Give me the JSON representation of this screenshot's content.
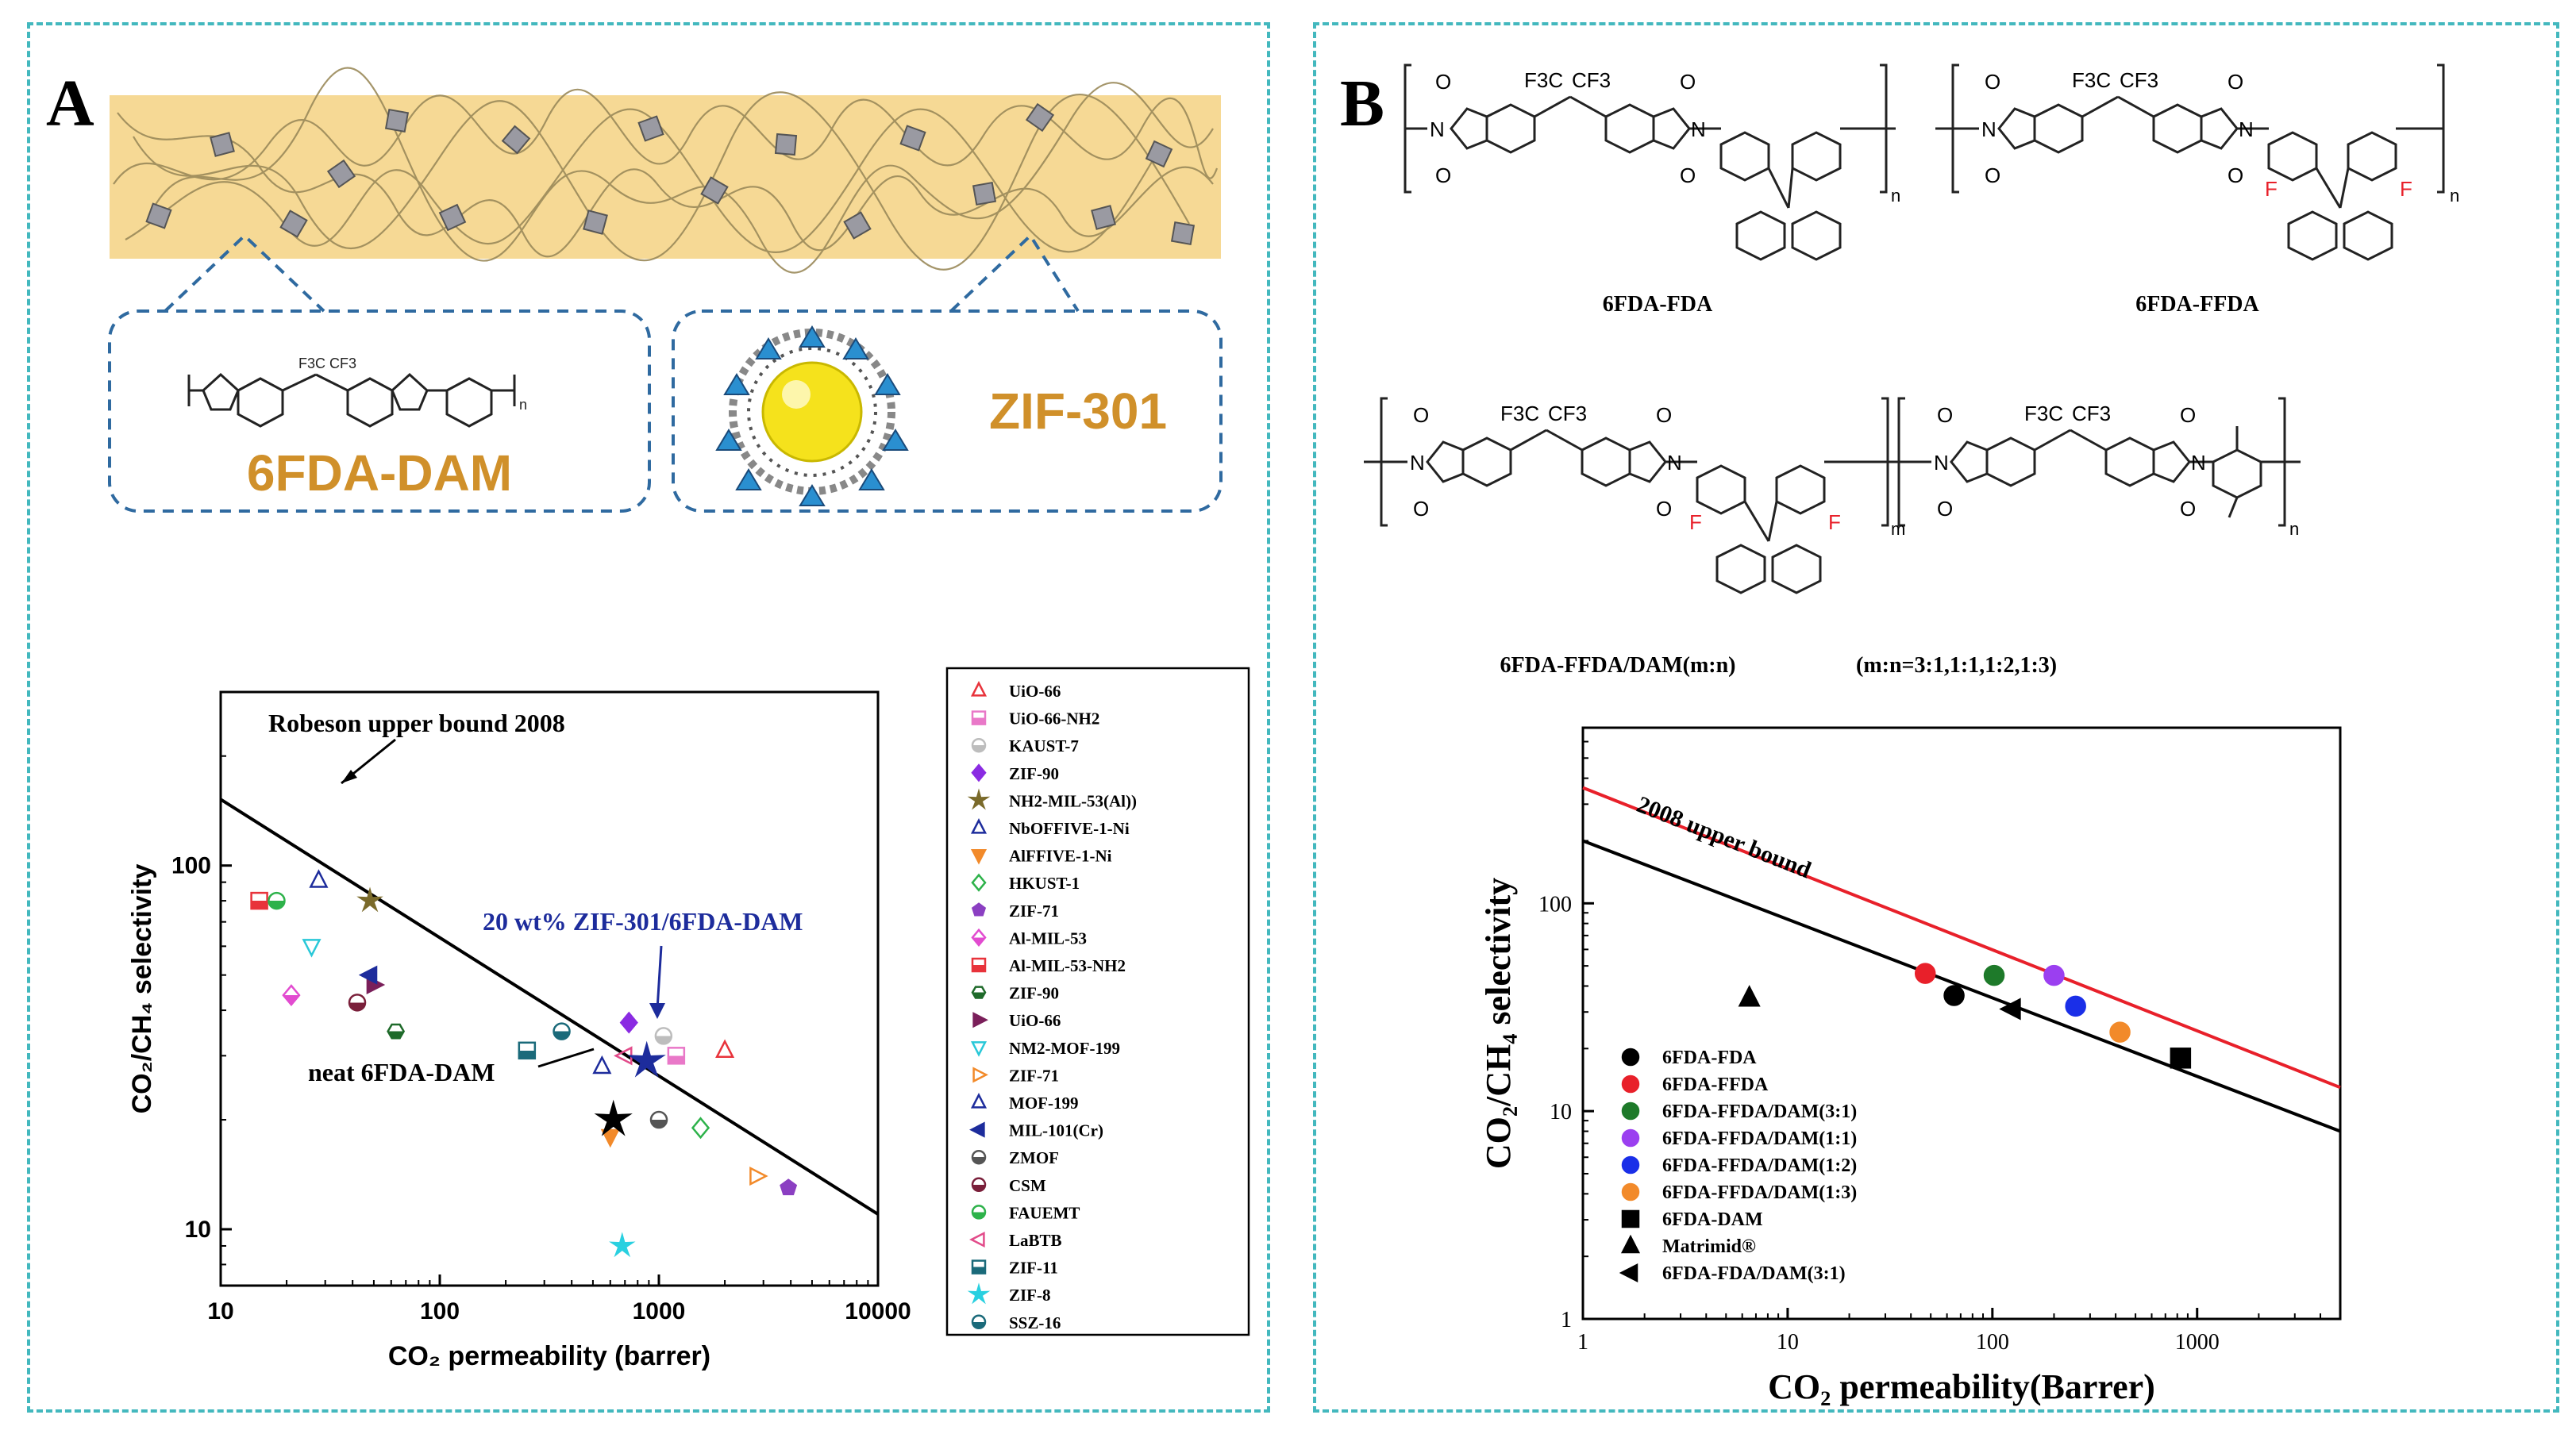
{
  "panelA": {
    "label": "A",
    "composite": {
      "polymer_name": "6FDA-DAM",
      "filler_name": "ZIF-301",
      "cf3_label": "F3C CF3",
      "repeat_n": "n"
    },
    "chart_data": {
      "type": "scatter",
      "xscale": "log",
      "yscale": "log",
      "xlim": [
        10,
        10000
      ],
      "ylim": [
        7,
        300
      ],
      "xticks": [
        "10",
        "100",
        "1000",
        "10000"
      ],
      "yticks": [
        "10",
        "100"
      ],
      "xlabel": "CO₂ permeability (barrer)",
      "ylabel": "CO₂/CH₄ selectivity",
      "upper_bound": {
        "name": "Robeson upper bound 2008",
        "points": [
          [
            10,
            152
          ],
          [
            10000,
            11
          ]
        ],
        "color": "#000000"
      },
      "annotations": {
        "highlight": "20 wt% ZIF-301/6FDA-DAM",
        "neat": "neat 6FDA-DAM"
      },
      "series": [
        {
          "name": "UiO-66",
          "marker": "tri-up-open",
          "color": "#e8333b",
          "points": [
            [
              2000,
              31
            ]
          ]
        },
        {
          "name": "UiO-66-NH2",
          "marker": "square-half",
          "color": "#e978c8",
          "points": [
            [
              1200,
              30
            ]
          ]
        },
        {
          "name": "KAUST-7",
          "marker": "circle-half",
          "color": "#bdbdbd",
          "points": [
            [
              1050,
              34
            ]
          ]
        },
        {
          "name": "ZIF-90",
          "marker": "diamond",
          "color": "#8a2be2",
          "points": [
            [
              730,
              37
            ]
          ]
        },
        {
          "name": "NH2-MIL-53(Al))",
          "marker": "star",
          "color": "#7a6a2a",
          "points": [
            [
              48,
              80
            ]
          ]
        },
        {
          "name": "NbOFFIVE-1-Ni",
          "marker": "tri-up-open",
          "color": "#1d2c9c",
          "points": [
            [
              28,
              91
            ]
          ]
        },
        {
          "name": "AlFFIVE-1-Ni",
          "marker": "tri-down",
          "color": "#f28a2a",
          "points": [
            [
              600,
              18
            ]
          ]
        },
        {
          "name": "HKUST-1",
          "marker": "diamond-open",
          "color": "#2db24a",
          "points": [
            [
              1550,
              19
            ]
          ]
        },
        {
          "name": "ZIF-71",
          "marker": "pentagon",
          "color": "#8b3fc2",
          "points": [
            [
              3900,
              13
            ]
          ]
        },
        {
          "name": "Al-MIL-53",
          "marker": "diamond-half",
          "color": "#e24bd0",
          "points": [
            [
              21,
              44
            ]
          ]
        },
        {
          "name": "Al-MIL-53-NH2",
          "marker": "square-half",
          "color": "#e8333b",
          "points": [
            [
              15,
              80
            ]
          ]
        },
        {
          "name": "ZIF-90",
          "marker": "hexagon-half",
          "color": "#1e6a2a",
          "points": [
            [
              63,
              35
            ]
          ]
        },
        {
          "name": "UiO-66",
          "marker": "tri-right",
          "color": "#7a1f5a",
          "points": [
            [
              50,
              47
            ]
          ]
        },
        {
          "name": "NM2-MOF-199",
          "marker": "tri-down-open",
          "color": "#29c8d8",
          "points": [
            [
              26,
              60
            ]
          ]
        },
        {
          "name": "ZIF-71",
          "marker": "tri-right-open",
          "color": "#f28a2a",
          "points": [
            [
              2800,
              14
            ]
          ]
        },
        {
          "name": "MOF-199",
          "marker": "tri-up-open",
          "color": "#1d2c9c",
          "points": [
            [
              550,
              28
            ]
          ]
        },
        {
          "name": "MIL-101(Cr)",
          "marker": "tri-left",
          "color": "#1d2c9c",
          "points": [
            [
              48,
              50
            ]
          ]
        },
        {
          "name": "ZMOF",
          "marker": "circle-half",
          "color": "#555555",
          "points": [
            [
              1000,
              20
            ]
          ]
        },
        {
          "name": "CSM",
          "marker": "circle-half",
          "color": "#7a1f3a",
          "points": [
            [
              42,
              42
            ]
          ]
        },
        {
          "name": "FAUEMT",
          "marker": "circle-half",
          "color": "#2db24a",
          "points": [
            [
              18,
              80
            ]
          ]
        },
        {
          "name": "LaBTB",
          "marker": "tri-left-open",
          "color": "#e24b8a",
          "points": [
            [
              700,
              30
            ]
          ]
        },
        {
          "name": "ZIF-11",
          "marker": "square-half",
          "color": "#1a6a7a",
          "points": [
            [
              250,
              31
            ]
          ]
        },
        {
          "name": "ZIF-8",
          "marker": "star",
          "color": "#29d0e0",
          "points": [
            [
              680,
              9
            ]
          ]
        },
        {
          "name": "SSZ-16",
          "marker": "circle-half",
          "color": "#1a6a7a",
          "points": [
            [
              360,
              35
            ]
          ]
        }
      ],
      "special_points": [
        {
          "name": "20 wt% ZIF-301/6FDA-DAM",
          "marker": "star",
          "color": "#1d2c9c",
          "points": [
            [
              880,
              29
            ]
          ]
        },
        {
          "name": "neat 6FDA-DAM",
          "marker": "star",
          "color": "#000000",
          "points": [
            [
              620,
              20
            ]
          ]
        }
      ]
    }
  },
  "panelB": {
    "label": "B",
    "structures": {
      "s1": "6FDA-FDA",
      "s2": "6FDA-FFDA",
      "s3": "6FDA-FFDA/DAM(m:n)",
      "ratio_note": "(m:n=3:1,1:1,1:2,1:3)",
      "f3c": "F3C",
      "cf3": "CF3",
      "n": "n",
      "m": "m",
      "o": "O",
      "nitrogen": "N",
      "fluorine": "F"
    },
    "chart_data": {
      "type": "scatter",
      "xscale": "log",
      "yscale": "log",
      "xlim": [
        1,
        5000
      ],
      "ylim": [
        1,
        700
      ],
      "xticks": [
        "1",
        "10",
        "100",
        "1000"
      ],
      "yticks": [
        "1",
        "10",
        "100"
      ],
      "xlabel": "CO₂ permeability(Barrer)",
      "ylabel": "CO₂/CH₄ selectivity",
      "upper_bound": {
        "name": "2008 upper bound",
        "points": [
          [
            1,
            360
          ],
          [
            5000,
            13
          ]
        ],
        "color": "#e8202a"
      },
      "lower_line": {
        "points": [
          [
            1,
            200
          ],
          [
            5000,
            8
          ]
        ],
        "color": "#000000"
      },
      "series": [
        {
          "name": "6FDA-FDA",
          "marker": "circle",
          "color": "#000000",
          "points": [
            [
              65,
              36
            ]
          ]
        },
        {
          "name": "6FDA-FFDA",
          "marker": "circle",
          "color": "#e8202a",
          "points": [
            [
              47,
              46
            ]
          ]
        },
        {
          "name": "6FDA-FFDA/DAM(3:1)",
          "marker": "circle",
          "color": "#1e7a2a",
          "points": [
            [
              102,
              45
            ]
          ]
        },
        {
          "name": "6FDA-FFDA/DAM(1:1)",
          "marker": "circle",
          "color": "#9b3ff0",
          "points": [
            [
              200,
              45
            ]
          ]
        },
        {
          "name": "6FDA-FFDA/DAM(1:2)",
          "marker": "circle",
          "color": "#1a2fe8",
          "points": [
            [
              255,
              32
            ]
          ]
        },
        {
          "name": "6FDA-FFDA/DAM(1:3)",
          "marker": "circle",
          "color": "#f28a2a",
          "points": [
            [
              420,
              24
            ]
          ]
        },
        {
          "name": "6FDA-DAM",
          "marker": "square",
          "color": "#000000",
          "points": [
            [
              830,
              18
            ]
          ]
        },
        {
          "name": "Matrimid®",
          "marker": "tri-up",
          "color": "#000000",
          "points": [
            [
              6.5,
              35
            ]
          ]
        },
        {
          "name": "6FDA-FDA/DAM(3:1)",
          "marker": "tri-left",
          "color": "#000000",
          "points": [
            [
              125,
              31
            ]
          ]
        }
      ]
    }
  }
}
